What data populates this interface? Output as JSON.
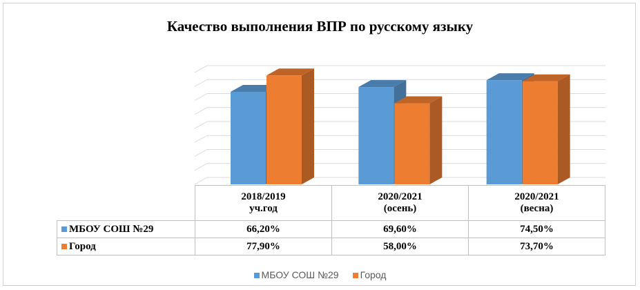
{
  "chart_data": {
    "type": "bar3d",
    "title": "Качество выполнения ВПР по русскому языку",
    "categories": [
      "2018/2019 уч.год",
      "2020/2021 (осень)",
      "2020/2021 (весна)"
    ],
    "series": [
      {
        "name": "МБОУ СОШ №29",
        "color": "#5b9bd5",
        "values": [
          66.2,
          69.6,
          74.5
        ],
        "value_labels": [
          "66,20%",
          "69,60%",
          "74,50%"
        ]
      },
      {
        "name": "Город",
        "color": "#ed7d31",
        "values": [
          77.9,
          58.0,
          73.7
        ],
        "value_labels": [
          "77,90%",
          "58,00%",
          "73,70%"
        ]
      }
    ],
    "ylim": [
      0,
      80
    ],
    "yticks": [
      0,
      10,
      20,
      30,
      40,
      50,
      60,
      70,
      80
    ],
    "grid": true
  }
}
